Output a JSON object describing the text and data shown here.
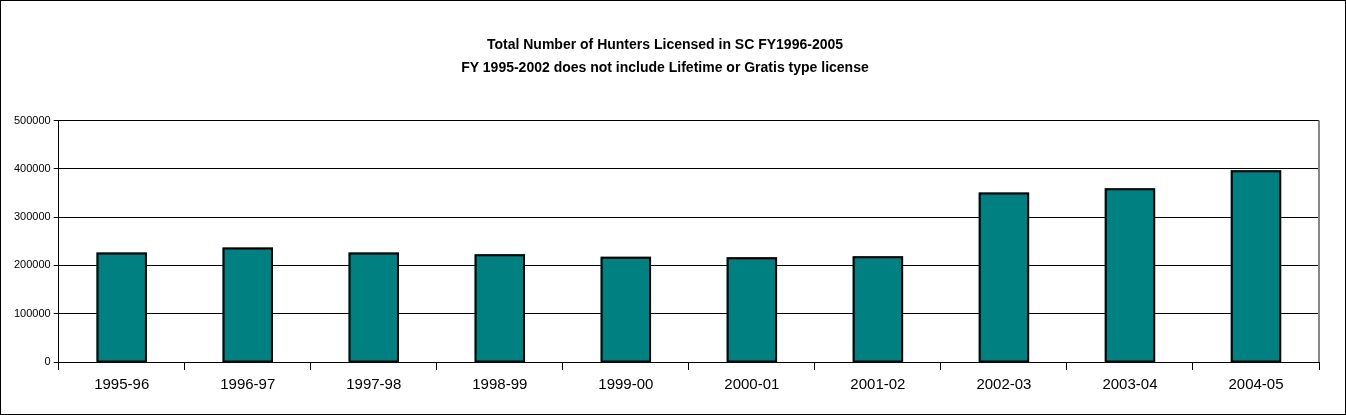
{
  "chart_data": {
    "type": "bar",
    "title": "Total Number of Hunters Licensed in SC FY1996-2005",
    "subtitle": "FY 1995-2002 does not include Lifetime or Gratis type license",
    "categories": [
      "1995-96",
      "1996-97",
      "1997-98",
      "1998-99",
      "1999-00",
      "2000-01",
      "2001-02",
      "2002-03",
      "2003-04",
      "2004-05"
    ],
    "values": [
      227000,
      237000,
      227000,
      223000,
      218000,
      217000,
      219000,
      351000,
      360000,
      397000
    ],
    "color": "#008080",
    "ylim": [
      0,
      500000
    ],
    "yticks": [
      0,
      100000,
      200000,
      300000,
      400000,
      500000
    ],
    "grid": "y",
    "legend": false
  }
}
